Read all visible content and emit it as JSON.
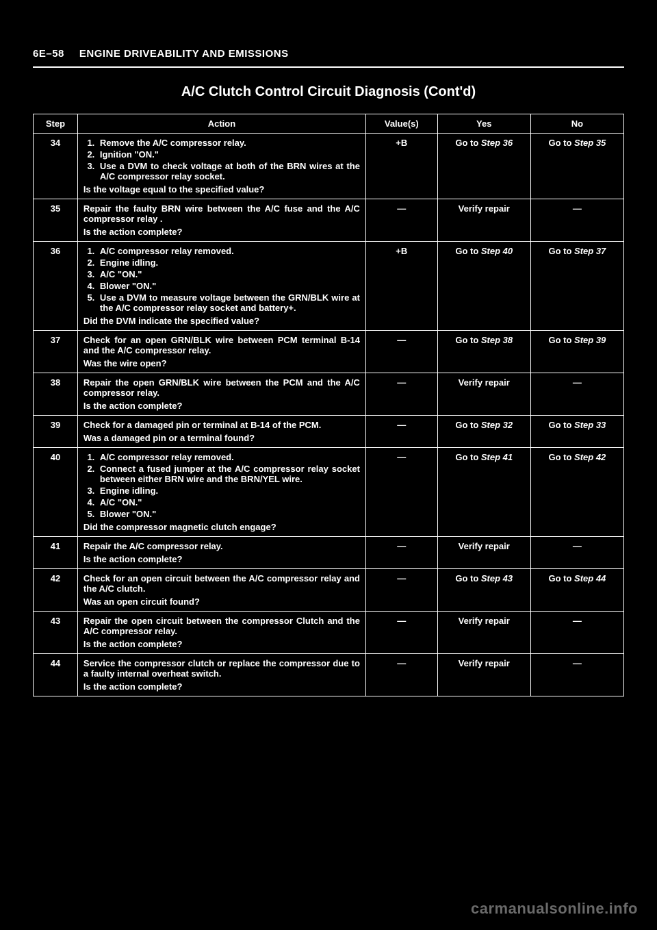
{
  "header": {
    "page_num": "6E–58",
    "section": "ENGINE DRIVEABILITY AND EMISSIONS"
  },
  "title": "A/C Clutch Control Circuit Diagnosis   (Cont'd)",
  "columns": {
    "step": "Step",
    "action": "Action",
    "value": "Value(s)",
    "yes": "Yes",
    "no": "No"
  },
  "rows": [
    {
      "step": "34",
      "list": [
        "Remove the A/C compressor relay.",
        "Ignition \"ON.\"",
        "Use a DVM to check voltage at both of the BRN wires at the A/C compressor relay socket."
      ],
      "question": "Is the voltage equal to the specified value?",
      "value": "+B",
      "yes_pre": "Go to ",
      "yes_em": "Step 36",
      "no_pre": "Go to ",
      "no_em": "Step 35"
    },
    {
      "step": "35",
      "stmt": "Repair the faulty BRN wire between the A/C fuse and the A/C compressor relay .",
      "question": "Is the action complete?",
      "value": "—",
      "yes_pre": "",
      "yes_em": "Verify repair",
      "no_pre": "—",
      "no_em": ""
    },
    {
      "step": "36",
      "list": [
        "A/C compressor relay removed.",
        "Engine idling.",
        "A/C \"ON.\"",
        "Blower \"ON.\"",
        "Use a DVM to measure voltage between the GRN/BLK wire at the A/C compressor relay socket and battery+."
      ],
      "question": "Did the DVM indicate the specified value?",
      "value": "+B",
      "yes_pre": "Go to ",
      "yes_em": "Step 40",
      "no_pre": "Go to ",
      "no_em": "Step 37"
    },
    {
      "step": "37",
      "stmt": "Check for an open GRN/BLK wire between PCM terminal B-14 and the A/C compressor relay.",
      "question": "Was the wire open?",
      "value": "—",
      "yes_pre": "Go to ",
      "yes_em": "Step 38",
      "no_pre": "Go to ",
      "no_em": "Step 39"
    },
    {
      "step": "38",
      "stmt": "Repair the open GRN/BLK wire between the PCM and the A/C compressor relay.",
      "question": "Is the action complete?",
      "value": "—",
      "yes_pre": "",
      "yes_em": "Verify repair",
      "no_pre": "—",
      "no_em": ""
    },
    {
      "step": "39",
      "stmt": "Check for a damaged pin or terminal at B-14 of the PCM.",
      "question": "Was a damaged pin or a terminal found?",
      "value": "—",
      "yes_pre": "Go to ",
      "yes_em": "Step 32",
      "no_pre": "Go to ",
      "no_em": "Step 33"
    },
    {
      "step": "40",
      "list": [
        "A/C compressor relay removed.",
        "Connect a fused jumper at the A/C compressor relay socket between either BRN wire and the BRN/YEL wire.",
        "Engine idling.",
        "A/C \"ON.\"",
        "Blower \"ON.\""
      ],
      "question": "Did the compressor magnetic clutch engage?",
      "value": "—",
      "yes_pre": "Go to ",
      "yes_em": "Step 41",
      "no_pre": "Go to ",
      "no_em": "Step 42"
    },
    {
      "step": "41",
      "stmt": "Repair the A/C compressor relay.",
      "question": "Is the action complete?",
      "value": "—",
      "yes_pre": "",
      "yes_em": "Verify repair",
      "no_pre": "—",
      "no_em": ""
    },
    {
      "step": "42",
      "stmt": "Check for an open circuit between the A/C compressor relay and the A/C clutch.",
      "question": "Was an open circuit found?",
      "value": "—",
      "yes_pre": "Go to ",
      "yes_em": "Step 43",
      "no_pre": "Go to ",
      "no_em": "Step 44"
    },
    {
      "step": "43",
      "stmt": "Repair the open circuit between the compressor Clutch and the A/C compressor relay.",
      "question": "Is the action complete?",
      "value": "—",
      "yes_pre": "",
      "yes_em": "Verify repair",
      "no_pre": "—",
      "no_em": ""
    },
    {
      "step": "44",
      "stmt": "Service the compressor clutch or replace the compressor due to a faulty internal overheat switch.",
      "question": "Is the action complete?",
      "value": "—",
      "yes_pre": "",
      "yes_em": "Verify repair",
      "no_pre": "—",
      "no_em": ""
    }
  ],
  "watermark": "carmanualsonline.info"
}
